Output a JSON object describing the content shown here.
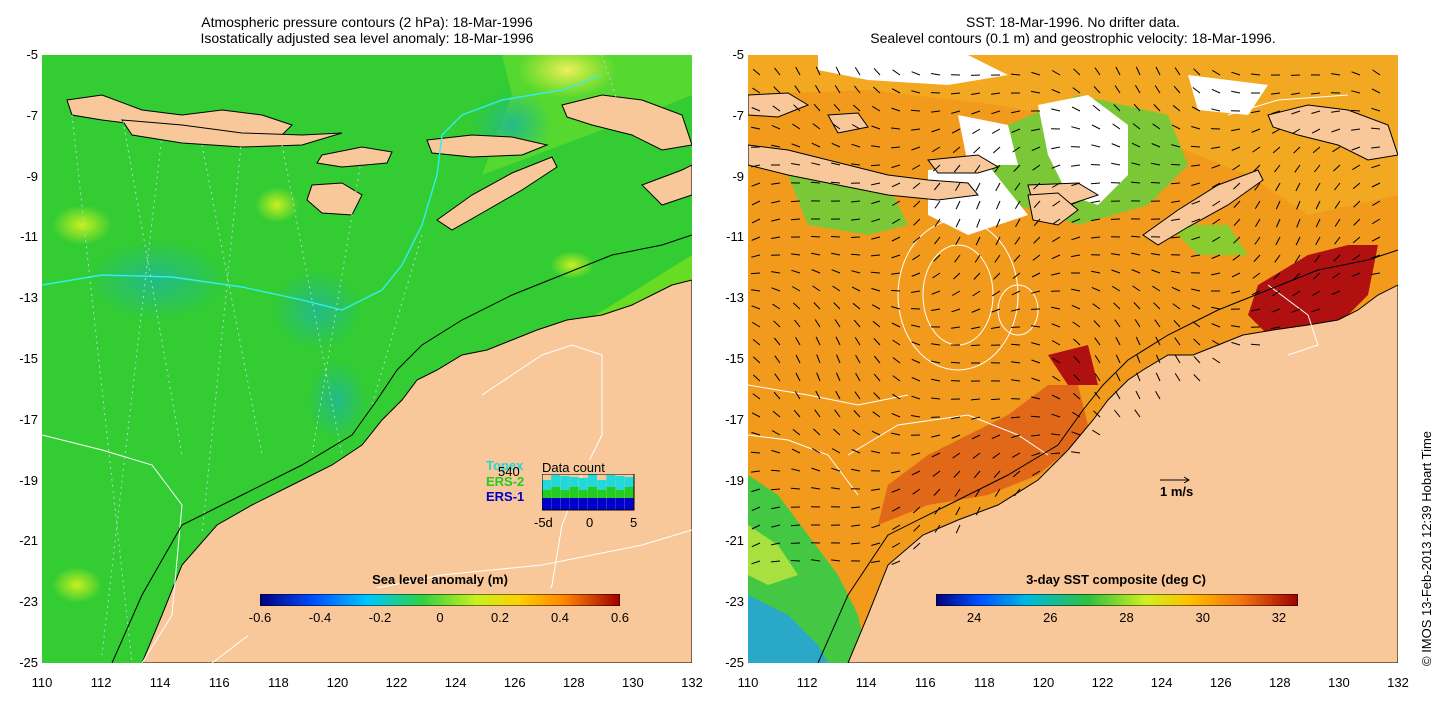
{
  "left_panel": {
    "title_line1": "Atmospheric pressure contours (2 hPa): 18-Mar-1996",
    "title_line2": "Isostatically adjusted sea level anomaly: 18-Mar-1996",
    "colorbar": {
      "title": "Sea level anomaly (m)",
      "ticks": [
        "-0.6",
        "-0.4",
        "-0.2",
        "0",
        "0.2",
        "0.4",
        "0.6"
      ],
      "range": [
        -0.6,
        0.6
      ]
    },
    "data_count": {
      "title": "Data count",
      "value": "540",
      "satellites": [
        "Topex",
        "ERS-2",
        "ERS-1"
      ],
      "sat_colors": [
        "#22d8d8",
        "#22cc22",
        "#0000cc"
      ],
      "x_ticks": [
        "-5d",
        "0",
        "5"
      ]
    }
  },
  "right_panel": {
    "title_line1": "SST: 18-Mar-1996. No drifter data.",
    "title_line2": "Sealevel contours (0.1 m) and geostrophic velocity: 18-Mar-1996.",
    "colorbar": {
      "title": "3-day SST composite (deg C)",
      "ticks": [
        "24",
        "26",
        "28",
        "30",
        "32"
      ],
      "range": [
        23,
        32.5
      ]
    },
    "scale_label": "1 m/s"
  },
  "axes": {
    "lat_ticks": [
      "-5",
      "-7",
      "-9",
      "-11",
      "-13",
      "-15",
      "-17",
      "-19",
      "-21",
      "-23",
      "-25"
    ],
    "lon_ticks": [
      "110",
      "112",
      "114",
      "116",
      "118",
      "120",
      "122",
      "124",
      "126",
      "128",
      "130",
      "132"
    ]
  },
  "credit": "© IMOS 13-Feb-2013 12:39 Hobart Time",
  "colors": {
    "land": "#f9c89a",
    "sla_green": "#33cc33",
    "sst_orange": "#f29a1c",
    "sst_red": "#b01010"
  }
}
